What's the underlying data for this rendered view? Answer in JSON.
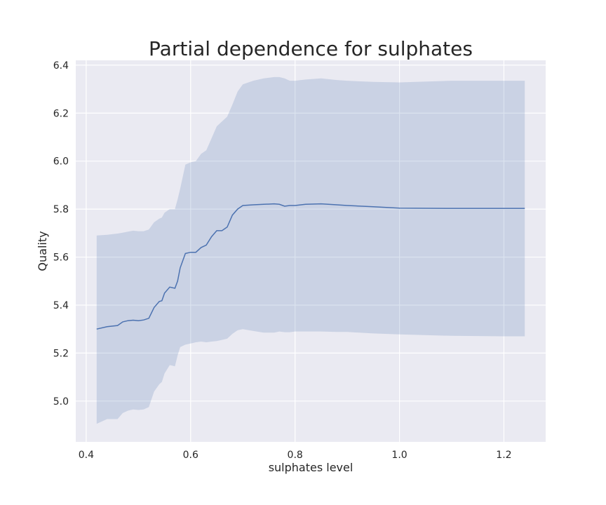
{
  "chart_data": {
    "type": "line",
    "title": "Partial dependence for sulphates",
    "xlabel": "sulphates level",
    "ylabel": "Quality",
    "xlim": [
      0.38,
      1.28
    ],
    "ylim": [
      4.83,
      6.42
    ],
    "xticks": [
      0.4,
      0.6,
      0.8,
      1.0,
      1.2
    ],
    "xtick_labels": [
      "0.4",
      "0.6",
      "0.8",
      "1.0",
      "1.2"
    ],
    "yticks": [
      5.0,
      5.2,
      5.4,
      5.6,
      5.8,
      6.0,
      6.2,
      6.4
    ],
    "ytick_labels": [
      "5.0",
      "5.2",
      "5.4",
      "5.6",
      "5.8",
      "6.0",
      "6.2",
      "6.4"
    ],
    "grid": true,
    "series": [
      {
        "type": "line",
        "color": "#4c72b0",
        "x": [
          0.42,
          0.44,
          0.46,
          0.47,
          0.48,
          0.49,
          0.5,
          0.51,
          0.52,
          0.53,
          0.54,
          0.545,
          0.55,
          0.56,
          0.57,
          0.575,
          0.58,
          0.59,
          0.6,
          0.61,
          0.62,
          0.63,
          0.64,
          0.65,
          0.66,
          0.67,
          0.68,
          0.69,
          0.7,
          0.72,
          0.74,
          0.76,
          0.77,
          0.78,
          0.79,
          0.8,
          0.82,
          0.85,
          0.88,
          0.9,
          0.95,
          1.0,
          1.1,
          1.2,
          1.24
        ],
        "y": [
          5.3,
          5.31,
          5.315,
          5.33,
          5.335,
          5.337,
          5.335,
          5.338,
          5.345,
          5.39,
          5.415,
          5.418,
          5.45,
          5.475,
          5.47,
          5.5,
          5.555,
          5.615,
          5.62,
          5.62,
          5.64,
          5.65,
          5.685,
          5.71,
          5.71,
          5.725,
          5.775,
          5.8,
          5.815,
          5.818,
          5.82,
          5.822,
          5.82,
          5.812,
          5.815,
          5.815,
          5.82,
          5.822,
          5.818,
          5.815,
          5.81,
          5.804,
          5.803,
          5.803,
          5.803
        ]
      },
      {
        "type": "band",
        "color": "#4c72b0",
        "opacity": 0.2,
        "x": [
          0.42,
          0.44,
          0.46,
          0.47,
          0.48,
          0.49,
          0.5,
          0.51,
          0.52,
          0.53,
          0.54,
          0.545,
          0.55,
          0.56,
          0.57,
          0.575,
          0.58,
          0.59,
          0.6,
          0.61,
          0.62,
          0.63,
          0.64,
          0.65,
          0.66,
          0.67,
          0.68,
          0.69,
          0.7,
          0.72,
          0.74,
          0.76,
          0.77,
          0.78,
          0.79,
          0.8,
          0.82,
          0.85,
          0.88,
          0.9,
          0.95,
          1.0,
          1.1,
          1.2,
          1.24
        ],
        "lower": [
          4.905,
          4.925,
          4.925,
          4.95,
          4.96,
          4.965,
          4.963,
          4.965,
          4.975,
          5.04,
          5.07,
          5.08,
          5.115,
          5.15,
          5.145,
          5.19,
          5.225,
          5.235,
          5.24,
          5.245,
          5.248,
          5.245,
          5.248,
          5.25,
          5.255,
          5.26,
          5.28,
          5.295,
          5.3,
          5.292,
          5.285,
          5.285,
          5.29,
          5.287,
          5.287,
          5.29,
          5.29,
          5.29,
          5.288,
          5.288,
          5.282,
          5.278,
          5.272,
          5.27,
          5.27
        ],
        "upper": [
          5.69,
          5.693,
          5.698,
          5.702,
          5.706,
          5.71,
          5.708,
          5.708,
          5.715,
          5.745,
          5.76,
          5.765,
          5.785,
          5.8,
          5.8,
          5.84,
          5.885,
          5.985,
          5.995,
          6.0,
          6.03,
          6.045,
          6.095,
          6.145,
          6.165,
          6.185,
          6.235,
          6.29,
          6.32,
          6.335,
          6.345,
          6.35,
          6.35,
          6.345,
          6.335,
          6.335,
          6.34,
          6.345,
          6.338,
          6.335,
          6.33,
          6.328,
          6.335,
          6.335,
          6.335
        ]
      }
    ]
  }
}
